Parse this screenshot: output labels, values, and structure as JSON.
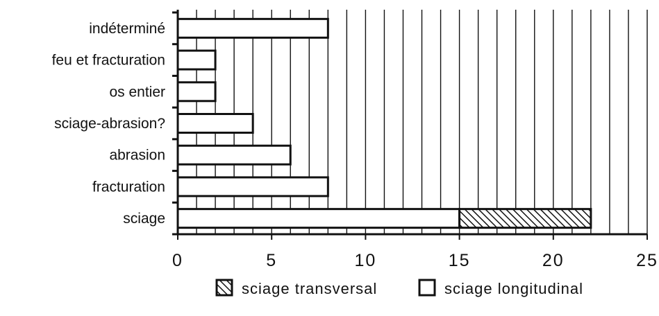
{
  "chart_data": {
    "type": "bar",
    "orientation": "horizontal",
    "stacked": true,
    "categories": [
      "sciage",
      "fracturation",
      "abrasion",
      "sciage-abrasion?",
      "os entier",
      "feu et fracturation",
      "indéterminé"
    ],
    "series": [
      {
        "name": "sciage longitudinal",
        "values": [
          15,
          8,
          6,
          4,
          2,
          2,
          8
        ],
        "color": "#ffffff",
        "pattern": "none"
      },
      {
        "name": "sciage transversal",
        "values": [
          7,
          0,
          0,
          0,
          0,
          0,
          0
        ],
        "color": "#ffffff",
        "pattern": "diagonal-hatch"
      }
    ],
    "title": "",
    "xlabel": "",
    "ylabel": "",
    "xlim": [
      0,
      25
    ],
    "xticks": [
      0,
      5,
      10,
      15,
      20,
      25
    ],
    "grid": "vertical-minor-lines",
    "legend_position": "bottom",
    "colors": {
      "ink": "#111111",
      "background": "#ffffff"
    }
  }
}
